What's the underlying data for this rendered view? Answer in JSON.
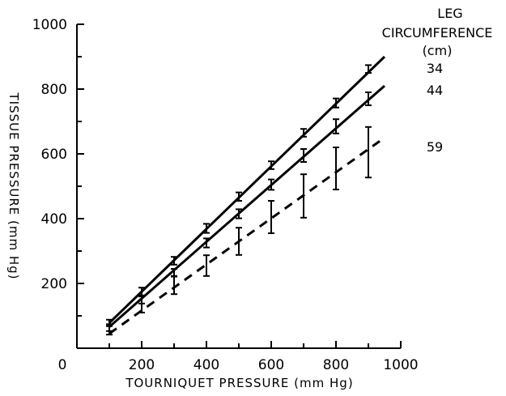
{
  "chart_data": {
    "type": "line",
    "xlabel": "TOURNIQUET PRESSURE (mm Hg)",
    "ylabel": "TISSUE PRESSURE (mm Hg)",
    "xlim": [
      0,
      1000
    ],
    "ylim": [
      0,
      1000
    ],
    "x_ticks": [
      0,
      200,
      400,
      600,
      800,
      1000
    ],
    "y_ticks": [
      200,
      400,
      600,
      800,
      1000
    ],
    "grid": false,
    "legend": {
      "title_lines": [
        "LEG",
        "CIRCUMFERENCE",
        "(cm)"
      ],
      "placement": "top-right, at line ends"
    },
    "x": [
      100,
      200,
      300,
      400,
      500,
      600,
      700,
      800,
      900
    ],
    "series": [
      {
        "name": "34",
        "style": "solid",
        "fit_line": {
          "x": [
            100,
            950
          ],
          "y": [
            78,
            900
          ]
        },
        "values": [
          78,
          175,
          270,
          370,
          468,
          565,
          665,
          757,
          862
        ],
        "error": [
          10,
          12,
          12,
          14,
          13,
          12,
          12,
          14,
          12
        ]
      },
      {
        "name": "44",
        "style": "solid",
        "fit_line": {
          "x": [
            100,
            950
          ],
          "y": [
            66,
            810
          ]
        },
        "values": [
          63,
          150,
          233,
          325,
          415,
          505,
          595,
          685,
          770
        ],
        "error": [
          10,
          12,
          12,
          14,
          14,
          16,
          20,
          22,
          20
        ]
      },
      {
        "name": "59",
        "style": "dashed",
        "fit_line": {
          "x": [
            100,
            950
          ],
          "y": [
            45,
            650
          ]
        },
        "values": [
          58,
          135,
          195,
          255,
          330,
          405,
          470,
          555,
          605
        ],
        "error": [
          16,
          25,
          28,
          32,
          42,
          50,
          67,
          65,
          78
        ]
      }
    ]
  }
}
